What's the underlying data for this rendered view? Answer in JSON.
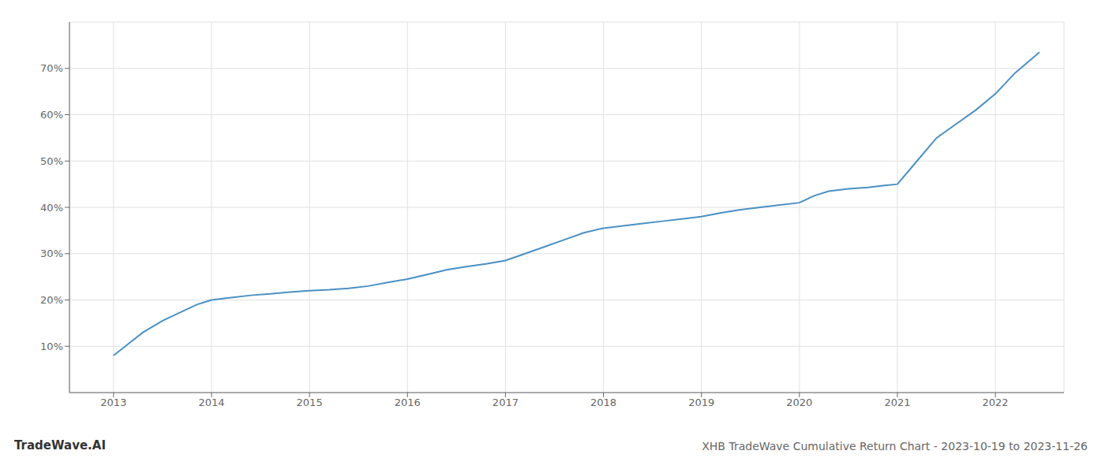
{
  "chart_data": {
    "type": "line",
    "title": "XHB TradeWave Cumulative Return Chart - 2023-10-19 to 2023-11-26",
    "annotations": [
      "TradeWave.AI"
    ],
    "color": "#4a90c4",
    "grid": true,
    "x": [
      2013.0,
      2013.15,
      2013.3,
      2013.5,
      2013.7,
      2013.85,
      2014.0,
      2014.2,
      2014.4,
      2014.6,
      2014.8,
      2015.0,
      2015.2,
      2015.4,
      2015.6,
      2015.8,
      2016.0,
      2016.2,
      2016.4,
      2016.6,
      2016.8,
      2017.0,
      2017.2,
      2017.4,
      2017.6,
      2017.8,
      2018.0,
      2018.2,
      2018.4,
      2018.6,
      2018.8,
      2019.0,
      2019.2,
      2019.4,
      2019.6,
      2019.8,
      2020.0,
      2020.15,
      2020.3,
      2020.5,
      2020.7,
      2020.85,
      2021.0,
      2021.2,
      2021.4,
      2021.6,
      2021.8,
      2022.0,
      2022.2,
      2022.45
    ],
    "values": [
      8.0,
      10.5,
      13.0,
      15.5,
      17.5,
      19.0,
      20.0,
      20.5,
      21.0,
      21.3,
      21.7,
      22.0,
      22.2,
      22.5,
      23.0,
      23.8,
      24.5,
      25.5,
      26.5,
      27.2,
      27.8,
      28.5,
      30.0,
      31.5,
      33.0,
      34.5,
      35.5,
      36.0,
      36.5,
      37.0,
      37.5,
      38.0,
      38.8,
      39.5,
      40.0,
      40.5,
      41.0,
      42.5,
      43.5,
      44.0,
      44.3,
      44.7,
      45.0,
      50.0,
      55.0,
      58.0,
      61.0,
      64.5,
      69.0,
      73.5
    ],
    "xlim": [
      2012.55,
      2022.7
    ],
    "xticks": [
      2013,
      2014,
      2015,
      2016,
      2017,
      2018,
      2019,
      2020,
      2021,
      2022
    ],
    "ylim": [
      0,
      80
    ],
    "yticks": [
      {
        "value": 10,
        "label": "10%"
      },
      {
        "value": 20,
        "label": "20%"
      },
      {
        "value": 30,
        "label": "30%"
      },
      {
        "value": 40,
        "label": "40%"
      },
      {
        "value": 50,
        "label": "50%"
      },
      {
        "value": 60,
        "label": "60%"
      },
      {
        "value": 70,
        "label": "70%"
      }
    ]
  }
}
